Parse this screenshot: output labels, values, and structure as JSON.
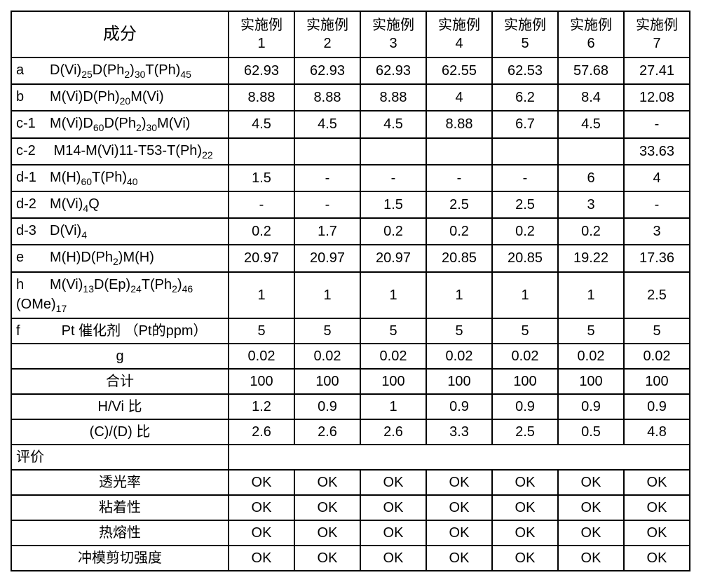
{
  "table": {
    "border_color": "#000000",
    "background_color": "#ffffff",
    "header": {
      "ingredient": "成分",
      "cols": [
        "实施例\n1",
        "实施例\n2",
        "实施例\n3",
        "实施例\n4",
        "实施例\n5",
        "实施例\n6",
        "实施例\n7"
      ]
    },
    "rows": [
      {
        "tag": "a",
        "formula": "D(Vi)<sub>25</sub>D(Ph<sub>2</sub>)<sub>30</sub>T(Ph)<sub>45</sub>",
        "v": [
          "62.93",
          "62.93",
          "62.93",
          "62.55",
          "62.53",
          "57.68",
          "27.41"
        ]
      },
      {
        "tag": "b",
        "formula": "M(Vi)D(Ph)<sub>20</sub>M(Vi)",
        "v": [
          "8.88",
          "8.88",
          "8.88",
          "4",
          "6.2",
          "8.4",
          "12.08"
        ]
      },
      {
        "tag": "c-1",
        "formula": "M(Vi)D<sub>60</sub>D(Ph<sub>2</sub>)<sub>30</sub>M(Vi)",
        "v": [
          "4.5",
          "4.5",
          "4.5",
          "8.88",
          "6.7",
          "4.5",
          "-"
        ]
      },
      {
        "tag": "c-2",
        "formula": " M14-M(Vi)11-T53-T(Ph)<sub>22</sub>",
        "v": [
          "",
          "",
          "",
          "",
          "",
          "",
          "33.63"
        ]
      },
      {
        "tag": "d-1",
        "formula": "M(H)<sub>60</sub>T(Ph)<sub>40</sub>",
        "v": [
          "1.5",
          "-",
          "-",
          "-",
          "-",
          "6",
          "4"
        ]
      },
      {
        "tag": "d-2",
        "formula": "M(Vi)<sub>4</sub>Q",
        "v": [
          "-",
          "-",
          "1.5",
          "2.5",
          "2.5",
          "3",
          "-"
        ]
      },
      {
        "tag": "d-3",
        "formula": "D(Vi)<sub>4</sub>",
        "v": [
          "0.2",
          "1.7",
          "0.2",
          "0.2",
          "0.2",
          "0.2",
          "3"
        ]
      },
      {
        "tag": "e",
        "formula": "M(H)D(Ph<sub>2</sub>)M(H)",
        "v": [
          "20.97",
          "20.97",
          "20.97",
          "20.85",
          "20.85",
          "19.22",
          "17.36"
        ]
      },
      {
        "tag": "h",
        "formula": "M(Vi)<sub>13</sub>D(Ep)<sub>24</sub>T(Ph<sub>2</sub>)<sub>46</sub><br>(OMe)<sub>17</sub>",
        "v": [
          "1",
          "1",
          "1",
          "1",
          "1",
          "1",
          "2.5"
        ],
        "tall": true
      },
      {
        "tag": "f",
        "formula": "   Pt 催化剂 （Pt的ppm）",
        "v": [
          "5",
          "5",
          "5",
          "5",
          "5",
          "5",
          "5"
        ]
      }
    ],
    "center_rows": [
      {
        "label": "g",
        "v": [
          "0.02",
          "0.02",
          "0.02",
          "0.02",
          "0.02",
          "0.02",
          "0.02"
        ]
      },
      {
        "label": "合计",
        "v": [
          "100",
          "100",
          "100",
          "100",
          "100",
          "100",
          "100"
        ]
      },
      {
        "label": "H/Vi 比",
        "v": [
          "1.2",
          "0.9",
          "1",
          "0.9",
          "0.9",
          "0.9",
          "0.9"
        ]
      },
      {
        "label": "(C)/(D) 比",
        "v": [
          "2.6",
          "2.6",
          "2.6",
          "3.3",
          "2.5",
          "0.5",
          "4.8"
        ]
      }
    ],
    "eval_header": "评价",
    "eval_rows": [
      {
        "label": "透光率",
        "v": [
          "OK",
          "OK",
          "OK",
          "OK",
          "OK",
          "OK",
          "OK"
        ]
      },
      {
        "label": "粘着性",
        "v": [
          "OK",
          "OK",
          "OK",
          "OK",
          "OK",
          "OK",
          "OK"
        ]
      },
      {
        "label": "热熔性",
        "v": [
          "OK",
          "OK",
          "OK",
          "OK",
          "OK",
          "OK",
          "OK"
        ]
      },
      {
        "label": "冲模剪切强度",
        "v": [
          "OK",
          "OK",
          "OK",
          "OK",
          "OK",
          "OK",
          "OK"
        ]
      }
    ]
  }
}
